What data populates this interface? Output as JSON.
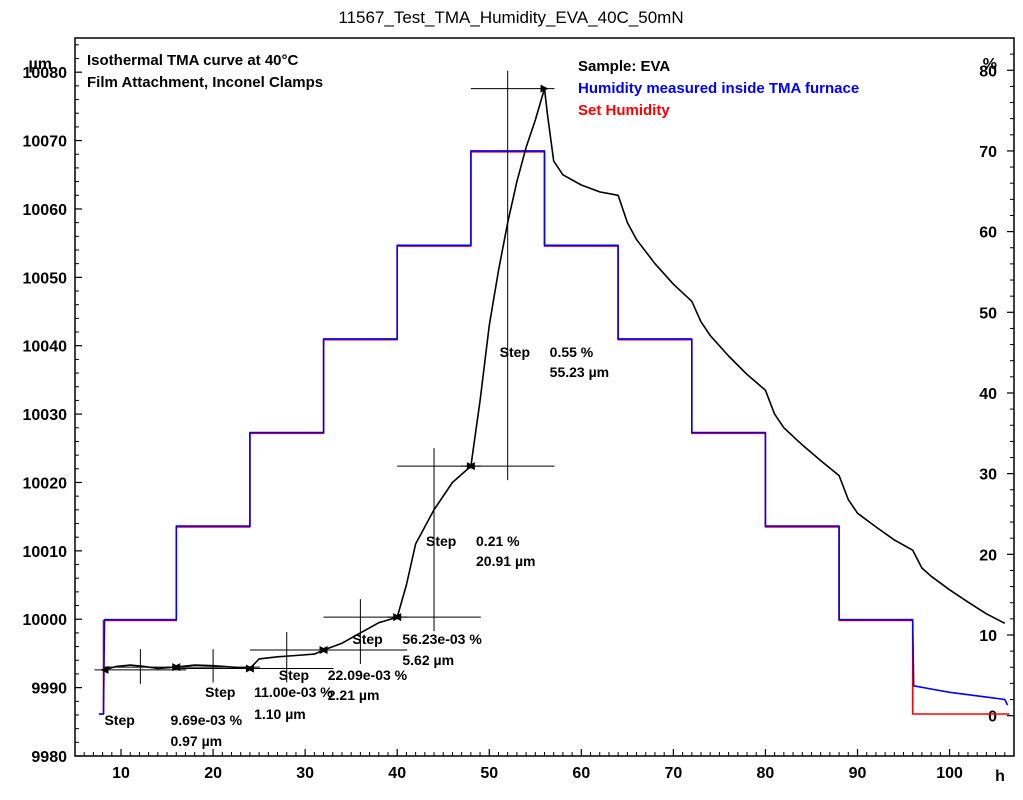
{
  "chart_data": {
    "type": "line",
    "title": "11567_Test_TMA_Humidity_EVA_40C_50mN",
    "annotations": {
      "line1": "Isothermal TMA curve at 40°C",
      "line2": "Film Attachment, Inconel Clamps"
    },
    "x_axis": {
      "unit": "h",
      "range": [
        5,
        107
      ],
      "ticks": [
        10,
        20,
        30,
        40,
        50,
        60,
        70,
        80,
        90,
        100
      ]
    },
    "y_axis_left": {
      "unit": "µm",
      "range": [
        9980,
        10085
      ],
      "ticks": [
        9980,
        9990,
        10000,
        10010,
        10020,
        10030,
        10040,
        10050,
        10060,
        10070,
        10080
      ]
    },
    "y_axis_right": {
      "unit": "%",
      "range": [
        -5,
        84
      ],
      "ticks": [
        0,
        10,
        20,
        30,
        40,
        50,
        60,
        70,
        80
      ]
    },
    "legend": [
      {
        "name": "Sample: EVA",
        "color": "#000000"
      },
      {
        "name": "Humidity measured inside TMA furnace",
        "color": "#0000ff"
      },
      {
        "name": "Set Humidity",
        "color": "#ff0000"
      }
    ],
    "series": [
      {
        "name": "Sample: EVA",
        "axis": "left",
        "color": "#000000",
        "x": [
          8.2,
          9.5,
          11,
          12.5,
          14,
          16,
          18,
          20,
          22,
          24,
          25,
          27,
          29,
          31,
          32,
          34,
          36,
          38,
          40,
          41,
          42,
          44,
          46,
          48,
          49,
          50,
          51,
          52,
          53,
          54,
          55,
          56,
          56.3,
          57,
          58,
          60,
          62,
          64,
          65,
          66,
          68,
          70,
          72,
          73,
          74,
          76,
          78,
          80,
          81,
          82,
          84,
          86,
          88,
          89,
          90,
          92,
          94,
          96,
          97,
          98,
          100,
          102,
          104,
          106
        ],
        "y": [
          9992.6,
          9993.1,
          9993.3,
          9993.1,
          9992.8,
          9993.0,
          9993.3,
          9993.2,
          9993.0,
          9992.8,
          9994.2,
          9994.5,
          9994.7,
          9994.9,
          9995.5,
          9996.5,
          9998.0,
          9999.5,
          10000.3,
          10005,
          10011,
          10016,
          10020,
          10022.4,
          10032,
          10043,
          10051,
          10058,
          10064,
          10069,
          10073,
          10077.6,
          10074,
          10067,
          10065,
          10063.5,
          10062.5,
          10062.0,
          10058,
          10055.5,
          10052,
          10049,
          10046.5,
          10043.5,
          10041.5,
          10038.5,
          10035.8,
          10033.5,
          10030,
          10028,
          10025.5,
          10023.2,
          10021.0,
          10017.5,
          10015.5,
          10013.5,
          10011.6,
          10010.1,
          10007.5,
          10006.3,
          10004.3,
          10002.5,
          10000.8,
          9999.4
        ]
      },
      {
        "name": "Humidity measured inside TMA furnace",
        "axis": "right",
        "color": "#0000ff",
        "x": [
          7.6,
          8.1,
          8.2,
          16,
          16,
          24,
          24,
          32,
          32,
          40,
          40,
          48,
          48,
          56,
          56,
          64,
          64,
          72,
          72,
          80,
          80,
          88,
          88,
          96,
          96.1,
          98,
          100,
          102,
          104,
          106,
          106.3
        ],
        "y": [
          0.2,
          0.2,
          11.9,
          11.9,
          23.5,
          23.5,
          35.1,
          35.1,
          46.7,
          46.7,
          58.3,
          58.3,
          70.0,
          70.0,
          58.3,
          58.3,
          46.7,
          46.7,
          35.1,
          35.1,
          23.5,
          23.5,
          11.9,
          11.9,
          3.7,
          3.3,
          2.9,
          2.6,
          2.3,
          2.0,
          1.3
        ]
      },
      {
        "name": "Set Humidity",
        "axis": "right",
        "color": "#ff0000",
        "x": [
          7.6,
          8.1,
          8.1,
          16,
          16,
          24,
          24,
          32,
          32,
          40,
          40,
          48,
          48,
          56,
          56,
          64,
          64,
          72,
          72,
          80,
          80,
          88,
          88,
          96,
          96,
          106.5
        ],
        "y": [
          0.2,
          0.2,
          11.8,
          11.8,
          23.4,
          23.4,
          35.0,
          35.0,
          46.6,
          46.6,
          58.2,
          58.2,
          69.9,
          69.9,
          58.2,
          58.2,
          46.6,
          46.6,
          35.0,
          35.0,
          23.4,
          23.4,
          11.8,
          11.8,
          0.2,
          0.2
        ]
      }
    ],
    "steps": [
      {
        "label": "Step",
        "percent": "9.69e-03 %",
        "micrometers": "0.97 µm",
        "x_start": 8.2,
        "y_start": 9992.6,
        "x_end": 16.0,
        "y_end": 9993.0
      },
      {
        "label": "Step",
        "percent": "11.00e-03 %",
        "micrometers": "1.10 µm",
        "x_start": 16.0,
        "y_start": 9993.0,
        "x_end": 24.0,
        "y_end": 9992.8
      },
      {
        "label": "Step",
        "percent": "22.09e-03 %",
        "micrometers": "2.21 µm",
        "x_start": 24.0,
        "y_start": 9992.8,
        "x_end": 32.0,
        "y_end": 9995.5
      },
      {
        "label": "Step",
        "percent": "56.23e-03 %",
        "micrometers": "5.62 µm",
        "x_start": 32.0,
        "y_start": 9995.5,
        "x_end": 40.0,
        "y_end": 10000.3
      },
      {
        "label": "Step",
        "percent": "0.21 %",
        "micrometers": "20.91 µm",
        "x_start": 40.0,
        "y_start": 10000.3,
        "x_end": 48.0,
        "y_end": 10022.4
      },
      {
        "label": "Step",
        "percent": "0.55 %",
        "micrometers": "55.23 µm",
        "x_start": 48.0,
        "y_start": 10022.4,
        "x_end": 56.0,
        "y_end": 10077.6
      }
    ]
  }
}
